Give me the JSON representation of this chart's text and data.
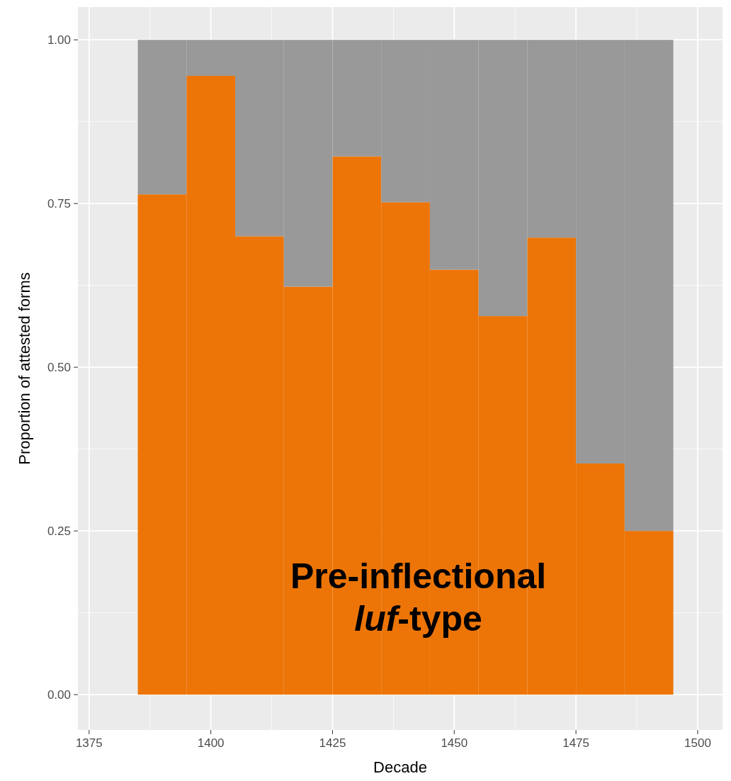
{
  "chart_data": {
    "type": "bar",
    "stacked": true,
    "x": [
      1390,
      1400,
      1410,
      1420,
      1430,
      1440,
      1450,
      1460,
      1470,
      1480,
      1490
    ],
    "series": [
      {
        "color": "#ed7507",
        "values": [
          0.764,
          0.945,
          0.7,
          0.623,
          0.822,
          0.752,
          0.649,
          0.578,
          0.698,
          0.353,
          0.25
        ]
      },
      {
        "color": "#999999",
        "values": [
          0.236,
          0.055,
          0.3,
          0.377,
          0.178,
          0.248,
          0.351,
          0.422,
          0.302,
          0.647,
          0.75
        ]
      }
    ],
    "xlim": [
      1372.7,
      1505.1
    ],
    "xticks": [
      1375,
      1400,
      1425,
      1450,
      1475,
      1500
    ],
    "ylim": [
      -0.054,
      1.05
    ],
    "yticks": [
      {
        "value": 0,
        "label": "0.00"
      },
      {
        "value": 0.25,
        "label": "0.25"
      },
      {
        "value": 0.5,
        "label": "0.50"
      },
      {
        "value": 0.75,
        "label": "0.75"
      },
      {
        "value": 1,
        "label": "1.00"
      }
    ],
    "xlabel": "Decade",
    "ylabel": "Proportion of attested forms",
    "grid": true,
    "annotations": [
      "Pre-inflectional",
      "luf-type"
    ]
  }
}
